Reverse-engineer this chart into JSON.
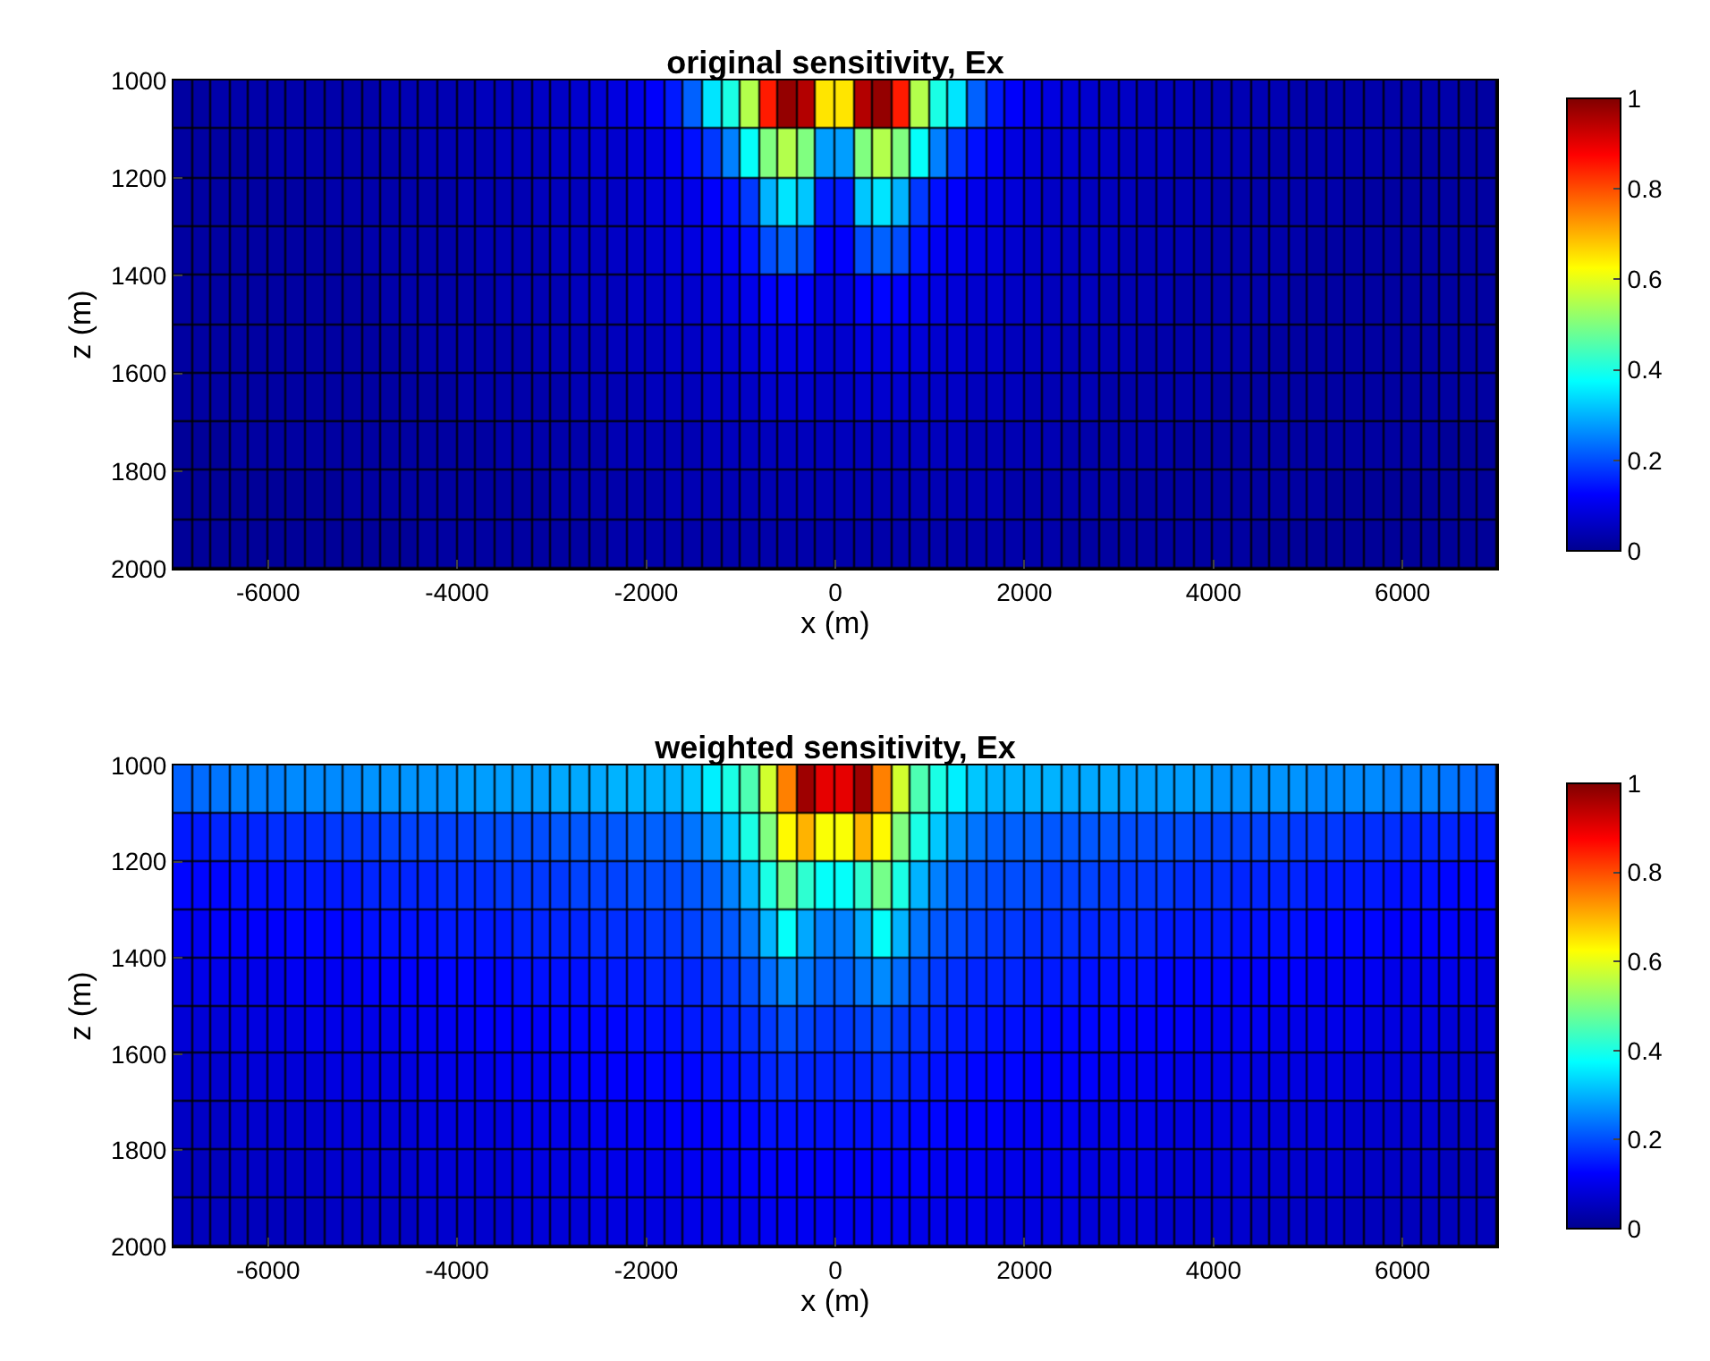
{
  "chart_data": [
    {
      "type": "heatmap",
      "title": "original sensitivity, Ex",
      "xlabel": "x (m)",
      "ylabel": "z (m)",
      "x": [
        -6900,
        -6700,
        -6500,
        -6300,
        -6100,
        -5900,
        -5700,
        -5500,
        -5300,
        -5100,
        -4900,
        -4700,
        -4500,
        -4300,
        -4100,
        -3900,
        -3700,
        -3500,
        -3300,
        -3100,
        -2900,
        -2700,
        -2500,
        -2300,
        -2100,
        -1900,
        -1700,
        -1500,
        -1300,
        -1100,
        -900,
        -700,
        -500,
        -300,
        -100,
        100,
        300,
        500,
        700,
        900,
        1100,
        1300,
        1500,
        1700,
        1900,
        2100,
        2300,
        2500,
        2700,
        2900,
        3100,
        3300,
        3500,
        3700,
        3900,
        4100,
        4300,
        4500,
        4700,
        4900,
        5100,
        5300,
        5500,
        5700,
        5900,
        6100,
        6300,
        6500,
        6700,
        6900
      ],
      "y": [
        1050,
        1150,
        1250,
        1350,
        1450,
        1550,
        1650,
        1750,
        1850,
        1950
      ],
      "xlim": [
        -7000,
        7000
      ],
      "xticks": [
        -6000,
        -4000,
        -2000,
        0,
        2000,
        4000,
        6000
      ],
      "ylim": [
        2000,
        1000
      ],
      "yticks": [
        1000,
        1200,
        1400,
        1600,
        1800,
        2000
      ],
      "clim": [
        0,
        1
      ],
      "cticks": [
        0,
        0.2,
        0.4,
        0.6,
        0.8,
        1
      ],
      "cells": [
        [
          0.02,
          0.02,
          0.03,
          0.03,
          0.03,
          0.03,
          0.03,
          0.03,
          0.03,
          0.03,
          0.03,
          0.04,
          0.04,
          0.04,
          0.04,
          0.04,
          0.05,
          0.05,
          0.05,
          0.06,
          0.06,
          0.07,
          0.08,
          0.09,
          0.1,
          0.12,
          0.15,
          0.22,
          0.35,
          0.4,
          0.55,
          0.85,
          0.98,
          0.95,
          0.65,
          0.65,
          0.95,
          0.98,
          0.85,
          0.55,
          0.4,
          0.35,
          0.22,
          0.15,
          0.12,
          0.1,
          0.09,
          0.08,
          0.07,
          0.06,
          0.06,
          0.05,
          0.05,
          0.05,
          0.04,
          0.04,
          0.04,
          0.04,
          0.04,
          0.03,
          0.03,
          0.03,
          0.03,
          0.03,
          0.03,
          0.03,
          0.03,
          0.03,
          0.02,
          0.02
        ],
        [
          0.02,
          0.02,
          0.02,
          0.02,
          0.02,
          0.03,
          0.03,
          0.03,
          0.03,
          0.03,
          0.03,
          0.03,
          0.03,
          0.04,
          0.04,
          0.04,
          0.04,
          0.05,
          0.05,
          0.05,
          0.06,
          0.06,
          0.07,
          0.07,
          0.08,
          0.09,
          0.11,
          0.14,
          0.18,
          0.25,
          0.38,
          0.5,
          0.55,
          0.5,
          0.28,
          0.28,
          0.5,
          0.55,
          0.5,
          0.38,
          0.25,
          0.18,
          0.14,
          0.11,
          0.09,
          0.08,
          0.07,
          0.07,
          0.06,
          0.06,
          0.05,
          0.05,
          0.05,
          0.04,
          0.04,
          0.04,
          0.04,
          0.03,
          0.03,
          0.03,
          0.03,
          0.03,
          0.03,
          0.03,
          0.03,
          0.02,
          0.02,
          0.02,
          0.02,
          0.02
        ],
        [
          0.02,
          0.02,
          0.02,
          0.02,
          0.02,
          0.02,
          0.02,
          0.02,
          0.03,
          0.03,
          0.03,
          0.03,
          0.03,
          0.03,
          0.03,
          0.04,
          0.04,
          0.04,
          0.04,
          0.05,
          0.05,
          0.05,
          0.06,
          0.06,
          0.07,
          0.08,
          0.09,
          0.1,
          0.12,
          0.14,
          0.18,
          0.3,
          0.35,
          0.32,
          0.15,
          0.15,
          0.32,
          0.35,
          0.3,
          0.18,
          0.14,
          0.12,
          0.1,
          0.09,
          0.08,
          0.07,
          0.06,
          0.06,
          0.05,
          0.05,
          0.05,
          0.04,
          0.04,
          0.04,
          0.04,
          0.03,
          0.03,
          0.03,
          0.03,
          0.03,
          0.03,
          0.03,
          0.02,
          0.02,
          0.02,
          0.02,
          0.02,
          0.02,
          0.02,
          0.02
        ],
        [
          0.02,
          0.02,
          0.02,
          0.02,
          0.02,
          0.02,
          0.02,
          0.02,
          0.02,
          0.02,
          0.03,
          0.03,
          0.03,
          0.03,
          0.03,
          0.03,
          0.04,
          0.04,
          0.04,
          0.04,
          0.05,
          0.05,
          0.05,
          0.06,
          0.06,
          0.07,
          0.08,
          0.09,
          0.1,
          0.11,
          0.14,
          0.2,
          0.22,
          0.2,
          0.12,
          0.12,
          0.2,
          0.22,
          0.2,
          0.14,
          0.11,
          0.1,
          0.09,
          0.08,
          0.07,
          0.06,
          0.06,
          0.05,
          0.05,
          0.05,
          0.04,
          0.04,
          0.04,
          0.04,
          0.03,
          0.03,
          0.03,
          0.03,
          0.03,
          0.03,
          0.02,
          0.02,
          0.02,
          0.02,
          0.02,
          0.02,
          0.02,
          0.02,
          0.02,
          0.02
        ],
        [
          0.02,
          0.02,
          0.02,
          0.02,
          0.02,
          0.02,
          0.02,
          0.02,
          0.02,
          0.02,
          0.02,
          0.03,
          0.03,
          0.03,
          0.03,
          0.03,
          0.03,
          0.04,
          0.04,
          0.04,
          0.04,
          0.05,
          0.05,
          0.05,
          0.06,
          0.06,
          0.07,
          0.07,
          0.08,
          0.09,
          0.1,
          0.12,
          0.13,
          0.12,
          0.09,
          0.09,
          0.12,
          0.13,
          0.12,
          0.1,
          0.09,
          0.08,
          0.07,
          0.07,
          0.06,
          0.06,
          0.05,
          0.05,
          0.05,
          0.04,
          0.04,
          0.04,
          0.04,
          0.03,
          0.03,
          0.03,
          0.03,
          0.03,
          0.03,
          0.02,
          0.02,
          0.02,
          0.02,
          0.02,
          0.02,
          0.02,
          0.02,
          0.02,
          0.02,
          0.02
        ],
        [
          0.02,
          0.02,
          0.02,
          0.02,
          0.02,
          0.02,
          0.02,
          0.02,
          0.02,
          0.02,
          0.02,
          0.02,
          0.02,
          0.03,
          0.03,
          0.03,
          0.03,
          0.03,
          0.03,
          0.04,
          0.04,
          0.04,
          0.04,
          0.05,
          0.05,
          0.05,
          0.06,
          0.06,
          0.07,
          0.07,
          0.08,
          0.09,
          0.09,
          0.09,
          0.07,
          0.07,
          0.09,
          0.09,
          0.09,
          0.08,
          0.07,
          0.07,
          0.06,
          0.06,
          0.05,
          0.05,
          0.05,
          0.04,
          0.04,
          0.04,
          0.04,
          0.03,
          0.03,
          0.03,
          0.03,
          0.03,
          0.03,
          0.02,
          0.02,
          0.02,
          0.02,
          0.02,
          0.02,
          0.02,
          0.02,
          0.02,
          0.02,
          0.02,
          0.02,
          0.02
        ],
        [
          0.02,
          0.02,
          0.02,
          0.02,
          0.02,
          0.02,
          0.02,
          0.02,
          0.02,
          0.02,
          0.02,
          0.02,
          0.02,
          0.02,
          0.02,
          0.03,
          0.03,
          0.03,
          0.03,
          0.03,
          0.03,
          0.04,
          0.04,
          0.04,
          0.04,
          0.05,
          0.05,
          0.05,
          0.06,
          0.06,
          0.06,
          0.07,
          0.07,
          0.07,
          0.06,
          0.06,
          0.07,
          0.07,
          0.07,
          0.06,
          0.06,
          0.06,
          0.05,
          0.05,
          0.05,
          0.04,
          0.04,
          0.04,
          0.04,
          0.03,
          0.03,
          0.03,
          0.03,
          0.03,
          0.03,
          0.02,
          0.02,
          0.02,
          0.02,
          0.02,
          0.02,
          0.02,
          0.02,
          0.02,
          0.02,
          0.02,
          0.02,
          0.02,
          0.02,
          0.02
        ],
        [
          0.01,
          0.01,
          0.01,
          0.02,
          0.02,
          0.02,
          0.02,
          0.02,
          0.02,
          0.02,
          0.02,
          0.02,
          0.02,
          0.02,
          0.02,
          0.02,
          0.02,
          0.03,
          0.03,
          0.03,
          0.03,
          0.03,
          0.03,
          0.04,
          0.04,
          0.04,
          0.04,
          0.04,
          0.05,
          0.05,
          0.05,
          0.05,
          0.05,
          0.05,
          0.05,
          0.05,
          0.05,
          0.05,
          0.05,
          0.05,
          0.05,
          0.05,
          0.04,
          0.04,
          0.04,
          0.04,
          0.04,
          0.03,
          0.03,
          0.03,
          0.03,
          0.03,
          0.03,
          0.02,
          0.02,
          0.02,
          0.02,
          0.02,
          0.02,
          0.02,
          0.02,
          0.02,
          0.02,
          0.02,
          0.02,
          0.02,
          0.02,
          0.01,
          0.01,
          0.01
        ],
        [
          0.01,
          0.01,
          0.01,
          0.01,
          0.01,
          0.01,
          0.01,
          0.01,
          0.01,
          0.02,
          0.02,
          0.02,
          0.02,
          0.02,
          0.02,
          0.02,
          0.02,
          0.02,
          0.02,
          0.02,
          0.03,
          0.03,
          0.03,
          0.03,
          0.03,
          0.03,
          0.04,
          0.04,
          0.04,
          0.04,
          0.04,
          0.04,
          0.04,
          0.04,
          0.04,
          0.04,
          0.04,
          0.04,
          0.04,
          0.04,
          0.04,
          0.04,
          0.04,
          0.04,
          0.03,
          0.03,
          0.03,
          0.03,
          0.03,
          0.03,
          0.02,
          0.02,
          0.02,
          0.02,
          0.02,
          0.02,
          0.02,
          0.02,
          0.02,
          0.02,
          0.02,
          0.01,
          0.01,
          0.01,
          0.01,
          0.01,
          0.01,
          0.01,
          0.01,
          0.01
        ],
        [
          0.01,
          0.01,
          0.01,
          0.01,
          0.01,
          0.01,
          0.01,
          0.01,
          0.01,
          0.01,
          0.01,
          0.01,
          0.01,
          0.02,
          0.02,
          0.02,
          0.02,
          0.02,
          0.02,
          0.02,
          0.02,
          0.02,
          0.02,
          0.03,
          0.03,
          0.03,
          0.03,
          0.03,
          0.03,
          0.03,
          0.03,
          0.03,
          0.03,
          0.03,
          0.03,
          0.03,
          0.03,
          0.03,
          0.03,
          0.03,
          0.03,
          0.03,
          0.03,
          0.03,
          0.03,
          0.03,
          0.03,
          0.02,
          0.02,
          0.02,
          0.02,
          0.02,
          0.02,
          0.02,
          0.02,
          0.02,
          0.02,
          0.01,
          0.01,
          0.01,
          0.01,
          0.01,
          0.01,
          0.01,
          0.01,
          0.01,
          0.01,
          0.01,
          0.01,
          0.01
        ]
      ]
    },
    {
      "type": "heatmap",
      "title": "weighted sensitivity, Ex",
      "xlabel": "x (m)",
      "ylabel": "z (m)",
      "x": [
        -6900,
        -6700,
        -6500,
        -6300,
        -6100,
        -5900,
        -5700,
        -5500,
        -5300,
        -5100,
        -4900,
        -4700,
        -4500,
        -4300,
        -4100,
        -3900,
        -3700,
        -3500,
        -3300,
        -3100,
        -2900,
        -2700,
        -2500,
        -2300,
        -2100,
        -1900,
        -1700,
        -1500,
        -1300,
        -1100,
        -900,
        -700,
        -500,
        -300,
        -100,
        100,
        300,
        500,
        700,
        900,
        1100,
        1300,
        1500,
        1700,
        1900,
        2100,
        2300,
        2500,
        2700,
        2900,
        3100,
        3300,
        3500,
        3700,
        3900,
        4100,
        4300,
        4500,
        4700,
        4900,
        5100,
        5300,
        5500,
        5700,
        5900,
        6100,
        6300,
        6500,
        6700,
        6900
      ],
      "y": [
        1050,
        1150,
        1250,
        1350,
        1450,
        1550,
        1650,
        1750,
        1850,
        1950
      ],
      "xlim": [
        -7000,
        7000
      ],
      "xticks": [
        -6000,
        -4000,
        -2000,
        0,
        2000,
        4000,
        6000
      ],
      "ylim": [
        2000,
        1000
      ],
      "yticks": [
        1000,
        1200,
        1400,
        1600,
        1800,
        2000
      ],
      "clim": [
        0,
        1
      ],
      "cticks": [
        0,
        0.2,
        0.4,
        0.6,
        0.8,
        1
      ],
      "cells": [
        [
          0.22,
          0.23,
          0.24,
          0.25,
          0.25,
          0.25,
          0.26,
          0.26,
          0.26,
          0.26,
          0.27,
          0.27,
          0.27,
          0.27,
          0.27,
          0.28,
          0.28,
          0.28,
          0.28,
          0.28,
          0.29,
          0.29,
          0.29,
          0.3,
          0.3,
          0.3,
          0.3,
          0.32,
          0.36,
          0.4,
          0.45,
          0.58,
          0.75,
          0.97,
          0.9,
          0.9,
          0.97,
          0.75,
          0.58,
          0.45,
          0.4,
          0.36,
          0.32,
          0.3,
          0.3,
          0.3,
          0.3,
          0.29,
          0.29,
          0.29,
          0.28,
          0.28,
          0.28,
          0.28,
          0.28,
          0.27,
          0.27,
          0.27,
          0.27,
          0.27,
          0.26,
          0.26,
          0.26,
          0.26,
          0.25,
          0.25,
          0.25,
          0.24,
          0.23,
          0.22
        ],
        [
          0.15,
          0.15,
          0.16,
          0.16,
          0.16,
          0.17,
          0.17,
          0.17,
          0.18,
          0.18,
          0.18,
          0.19,
          0.19,
          0.19,
          0.19,
          0.19,
          0.2,
          0.2,
          0.2,
          0.2,
          0.21,
          0.21,
          0.21,
          0.21,
          0.22,
          0.22,
          0.22,
          0.24,
          0.27,
          0.32,
          0.4,
          0.5,
          0.63,
          0.7,
          0.62,
          0.62,
          0.7,
          0.63,
          0.5,
          0.4,
          0.32,
          0.27,
          0.24,
          0.22,
          0.22,
          0.22,
          0.21,
          0.21,
          0.21,
          0.21,
          0.2,
          0.2,
          0.2,
          0.2,
          0.19,
          0.19,
          0.19,
          0.19,
          0.19,
          0.18,
          0.18,
          0.18,
          0.17,
          0.17,
          0.17,
          0.16,
          0.16,
          0.16,
          0.15,
          0.15
        ],
        [
          0.13,
          0.13,
          0.13,
          0.14,
          0.14,
          0.14,
          0.15,
          0.15,
          0.15,
          0.15,
          0.16,
          0.16,
          0.16,
          0.16,
          0.17,
          0.17,
          0.17,
          0.18,
          0.18,
          0.18,
          0.18,
          0.19,
          0.19,
          0.19,
          0.2,
          0.2,
          0.2,
          0.21,
          0.22,
          0.25,
          0.3,
          0.4,
          0.49,
          0.42,
          0.38,
          0.38,
          0.42,
          0.49,
          0.4,
          0.3,
          0.25,
          0.22,
          0.21,
          0.2,
          0.2,
          0.2,
          0.19,
          0.19,
          0.19,
          0.18,
          0.18,
          0.18,
          0.18,
          0.17,
          0.17,
          0.17,
          0.16,
          0.16,
          0.16,
          0.16,
          0.15,
          0.15,
          0.15,
          0.15,
          0.14,
          0.14,
          0.14,
          0.13,
          0.13,
          0.13
        ],
        [
          0.11,
          0.11,
          0.12,
          0.12,
          0.12,
          0.12,
          0.13,
          0.13,
          0.13,
          0.13,
          0.14,
          0.14,
          0.14,
          0.14,
          0.15,
          0.15,
          0.15,
          0.15,
          0.16,
          0.16,
          0.16,
          0.16,
          0.17,
          0.17,
          0.17,
          0.18,
          0.18,
          0.19,
          0.2,
          0.21,
          0.24,
          0.3,
          0.38,
          0.29,
          0.25,
          0.25,
          0.29,
          0.38,
          0.3,
          0.24,
          0.21,
          0.2,
          0.19,
          0.18,
          0.18,
          0.17,
          0.17,
          0.17,
          0.16,
          0.16,
          0.16,
          0.16,
          0.15,
          0.15,
          0.15,
          0.15,
          0.14,
          0.14,
          0.14,
          0.14,
          0.13,
          0.13,
          0.13,
          0.13,
          0.12,
          0.12,
          0.12,
          0.12,
          0.11,
          0.11
        ],
        [
          0.09,
          0.1,
          0.1,
          0.1,
          0.1,
          0.1,
          0.11,
          0.11,
          0.11,
          0.11,
          0.12,
          0.12,
          0.12,
          0.12,
          0.13,
          0.13,
          0.13,
          0.13,
          0.14,
          0.14,
          0.14,
          0.14,
          0.15,
          0.15,
          0.15,
          0.16,
          0.16,
          0.16,
          0.17,
          0.18,
          0.2,
          0.23,
          0.26,
          0.24,
          0.22,
          0.22,
          0.24,
          0.26,
          0.23,
          0.2,
          0.18,
          0.17,
          0.16,
          0.16,
          0.16,
          0.15,
          0.15,
          0.15,
          0.14,
          0.14,
          0.14,
          0.14,
          0.13,
          0.13,
          0.13,
          0.13,
          0.12,
          0.12,
          0.12,
          0.12,
          0.11,
          0.11,
          0.11,
          0.11,
          0.1,
          0.1,
          0.1,
          0.1,
          0.1,
          0.09
        ],
        [
          0.08,
          0.08,
          0.08,
          0.09,
          0.09,
          0.09,
          0.09,
          0.1,
          0.1,
          0.1,
          0.1,
          0.1,
          0.11,
          0.11,
          0.11,
          0.11,
          0.12,
          0.12,
          0.12,
          0.12,
          0.13,
          0.13,
          0.13,
          0.13,
          0.14,
          0.14,
          0.14,
          0.15,
          0.15,
          0.16,
          0.17,
          0.18,
          0.2,
          0.19,
          0.18,
          0.18,
          0.19,
          0.2,
          0.18,
          0.17,
          0.16,
          0.15,
          0.15,
          0.14,
          0.14,
          0.14,
          0.13,
          0.13,
          0.13,
          0.13,
          0.12,
          0.12,
          0.12,
          0.12,
          0.11,
          0.11,
          0.11,
          0.11,
          0.1,
          0.1,
          0.1,
          0.1,
          0.1,
          0.09,
          0.09,
          0.09,
          0.09,
          0.08,
          0.08,
          0.08
        ],
        [
          0.07,
          0.07,
          0.07,
          0.08,
          0.08,
          0.08,
          0.08,
          0.08,
          0.09,
          0.09,
          0.09,
          0.09,
          0.09,
          0.1,
          0.1,
          0.1,
          0.1,
          0.11,
          0.11,
          0.11,
          0.11,
          0.12,
          0.12,
          0.12,
          0.12,
          0.13,
          0.13,
          0.13,
          0.14,
          0.14,
          0.15,
          0.16,
          0.17,
          0.16,
          0.16,
          0.16,
          0.16,
          0.17,
          0.16,
          0.15,
          0.14,
          0.14,
          0.13,
          0.13,
          0.13,
          0.12,
          0.12,
          0.12,
          0.12,
          0.11,
          0.11,
          0.11,
          0.11,
          0.1,
          0.1,
          0.1,
          0.1,
          0.09,
          0.09,
          0.09,
          0.09,
          0.09,
          0.08,
          0.08,
          0.08,
          0.08,
          0.08,
          0.07,
          0.07,
          0.07
        ],
        [
          0.06,
          0.06,
          0.06,
          0.07,
          0.07,
          0.07,
          0.07,
          0.07,
          0.08,
          0.08,
          0.08,
          0.08,
          0.08,
          0.09,
          0.09,
          0.09,
          0.09,
          0.09,
          0.1,
          0.1,
          0.1,
          0.1,
          0.11,
          0.11,
          0.11,
          0.11,
          0.12,
          0.12,
          0.12,
          0.13,
          0.13,
          0.14,
          0.14,
          0.14,
          0.14,
          0.14,
          0.14,
          0.14,
          0.14,
          0.13,
          0.13,
          0.12,
          0.12,
          0.12,
          0.11,
          0.11,
          0.11,
          0.11,
          0.1,
          0.1,
          0.1,
          0.1,
          0.09,
          0.09,
          0.09,
          0.09,
          0.09,
          0.08,
          0.08,
          0.08,
          0.08,
          0.08,
          0.07,
          0.07,
          0.07,
          0.07,
          0.07,
          0.06,
          0.06,
          0.06
        ],
        [
          0.05,
          0.05,
          0.05,
          0.06,
          0.06,
          0.06,
          0.06,
          0.06,
          0.07,
          0.07,
          0.07,
          0.07,
          0.07,
          0.08,
          0.08,
          0.08,
          0.08,
          0.08,
          0.09,
          0.09,
          0.09,
          0.09,
          0.1,
          0.1,
          0.1,
          0.1,
          0.1,
          0.11,
          0.11,
          0.11,
          0.12,
          0.12,
          0.12,
          0.12,
          0.12,
          0.12,
          0.12,
          0.12,
          0.12,
          0.12,
          0.11,
          0.11,
          0.11,
          0.1,
          0.1,
          0.1,
          0.1,
          0.1,
          0.09,
          0.09,
          0.09,
          0.09,
          0.08,
          0.08,
          0.08,
          0.08,
          0.08,
          0.07,
          0.07,
          0.07,
          0.07,
          0.07,
          0.06,
          0.06,
          0.06,
          0.06,
          0.06,
          0.05,
          0.05,
          0.05
        ],
        [
          0.05,
          0.05,
          0.05,
          0.05,
          0.05,
          0.05,
          0.05,
          0.05,
          0.06,
          0.06,
          0.06,
          0.06,
          0.06,
          0.07,
          0.07,
          0.07,
          0.07,
          0.07,
          0.08,
          0.08,
          0.08,
          0.08,
          0.09,
          0.09,
          0.09,
          0.09,
          0.09,
          0.1,
          0.1,
          0.1,
          0.1,
          0.11,
          0.11,
          0.11,
          0.11,
          0.11,
          0.11,
          0.11,
          0.11,
          0.1,
          0.1,
          0.1,
          0.1,
          0.09,
          0.09,
          0.09,
          0.09,
          0.09,
          0.08,
          0.08,
          0.08,
          0.08,
          0.07,
          0.07,
          0.07,
          0.07,
          0.07,
          0.06,
          0.06,
          0.06,
          0.06,
          0.06,
          0.05,
          0.05,
          0.05,
          0.05,
          0.05,
          0.05,
          0.05,
          0.05
        ]
      ]
    }
  ]
}
